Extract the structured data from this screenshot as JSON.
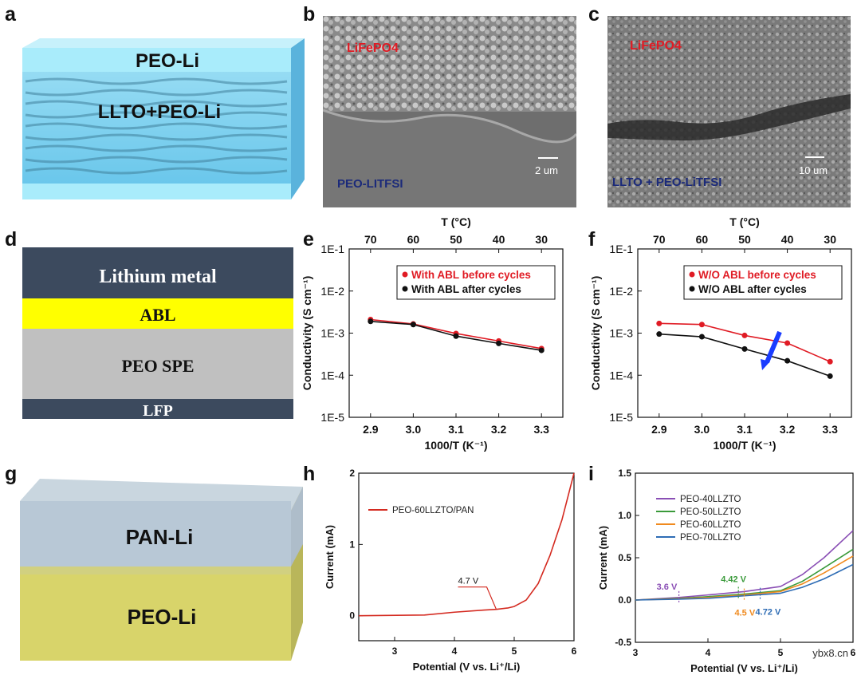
{
  "panels": {
    "a": {
      "letter": "a",
      "top_label": "PEO-Li",
      "middle_label": "LLTO+PEO-Li"
    },
    "b": {
      "letter": "b",
      "cathode_label": "LiFePO4",
      "electrolyte_label": "PEO-LITFSI",
      "scale": "2 um"
    },
    "c": {
      "letter": "c",
      "cathode_label": "LiFePO4",
      "electrolyte_label": "LLTO + PEO-LiTFSI",
      "scale": "10 um"
    },
    "d": {
      "letter": "d",
      "layers": [
        "Lithium metal",
        "ABL",
        "PEO SPE",
        "LFP"
      ]
    },
    "e": {
      "letter": "e"
    },
    "f": {
      "letter": "f"
    },
    "g": {
      "letter": "g",
      "top_label": "PAN-Li",
      "bottom_label": "PEO-Li"
    },
    "h": {
      "letter": "h"
    },
    "i": {
      "letter": "i"
    }
  },
  "colors": {
    "slate": "#3c4a5e",
    "abl_yellow": "#ffff00",
    "spe_gray": "#c0c0c0",
    "red": "#e01b24",
    "black": "#111111",
    "arrow_blue": "#1a3cff"
  },
  "chart_data": [
    {
      "id": "e",
      "type": "line",
      "xlabel": "1000/T (K⁻¹)",
      "ylabel": "Conductivity (S cm⁻¹)",
      "top_axis_label": "T (°C)",
      "top_ticks": [
        "70",
        "60",
        "50",
        "40",
        "30"
      ],
      "x_ticks": [
        "2.9",
        "3.0",
        "3.1",
        "3.2",
        "3.3"
      ],
      "y_ticks": [
        "1E-5",
        "1E-4",
        "1E-3",
        "1E-2",
        "1E-1"
      ],
      "xlim": [
        2.85,
        3.35
      ],
      "ylim_log10": [
        -5,
        -1
      ],
      "x": [
        2.9,
        3.0,
        3.1,
        3.2,
        3.3
      ],
      "series": [
        {
          "name": "With ABL before cycles",
          "color": "#e01b24",
          "values": [
            0.0021,
            0.00165,
            0.00098,
            0.00065,
            0.00043
          ]
        },
        {
          "name": "With ABL after cycles",
          "color": "#111111",
          "values": [
            0.0019,
            0.0016,
            0.00085,
            0.00057,
            0.00039
          ]
        }
      ]
    },
    {
      "id": "f",
      "type": "line",
      "xlabel": "1000/T (K⁻¹)",
      "ylabel": "Conductivity (S cm⁻¹)",
      "top_axis_label": "T (°C)",
      "top_ticks": [
        "70",
        "60",
        "50",
        "40",
        "30"
      ],
      "x_ticks": [
        "2.9",
        "3.0",
        "3.1",
        "3.2",
        "3.3"
      ],
      "y_ticks": [
        "1E-5",
        "1E-4",
        "1E-3",
        "1E-2",
        "1E-1"
      ],
      "xlim": [
        2.85,
        3.35
      ],
      "ylim_log10": [
        -5,
        -1
      ],
      "x": [
        2.9,
        3.0,
        3.1,
        3.2,
        3.3
      ],
      "series": [
        {
          "name": "W/O ABL before cycles",
          "color": "#e01b24",
          "values": [
            0.0017,
            0.0016,
            0.00088,
            0.00058,
            0.00021
          ]
        },
        {
          "name": "W/O ABL after cycles",
          "color": "#111111",
          "values": [
            0.00095,
            0.00082,
            0.00042,
            0.00022,
            9.5e-05
          ]
        }
      ]
    },
    {
      "id": "h",
      "type": "line",
      "xlabel": "Potential (V vs. Li⁺/Li)",
      "ylabel": "Current (mA)",
      "x_ticks": [
        "3",
        "4",
        "5",
        "6"
      ],
      "y_ticks": [
        "0",
        "1",
        "2"
      ],
      "xlim": [
        2.4,
        6.0
      ],
      "ylim": [
        -0.35,
        2.0
      ],
      "annotation": "4.7 V",
      "series": [
        {
          "name": "PEO-60LLZTO/PAN",
          "color": "#d42a20",
          "x": [
            2.4,
            3.5,
            4.0,
            4.5,
            4.7,
            4.9,
            5.0,
            5.2,
            5.4,
            5.6,
            5.8,
            6.0
          ],
          "values": [
            0.0,
            0.01,
            0.05,
            0.08,
            0.09,
            0.11,
            0.13,
            0.22,
            0.45,
            0.85,
            1.35,
            2.0
          ]
        }
      ]
    },
    {
      "id": "i",
      "type": "line",
      "xlabel": "Potential (V vs. Li⁺/Li)",
      "ylabel": "Current (mA)",
      "x_ticks": [
        "3",
        "4",
        "5",
        "6"
      ],
      "y_ticks": [
        "-0.5",
        "0.0",
        "0.5",
        "1.0",
        "1.5"
      ],
      "xlim": [
        3.0,
        6.0
      ],
      "ylim": [
        -0.5,
        1.5
      ],
      "annotations": [
        {
          "text": "3.6 V",
          "color": "#8a4fb5"
        },
        {
          "text": "4.42 V",
          "color": "#3a9a3a"
        },
        {
          "text": "4.5 V",
          "color": "#f08a1e"
        },
        {
          "text": "4.72 V",
          "color": "#2f6db5"
        }
      ],
      "series": [
        {
          "name": "PEO-40LLZTO",
          "color": "#8a4fb5",
          "x": [
            3.0,
            3.6,
            4.0,
            4.5,
            5.0,
            5.3,
            5.6,
            6.0
          ],
          "values": [
            0.0,
            0.03,
            0.06,
            0.1,
            0.16,
            0.3,
            0.5,
            0.82
          ]
        },
        {
          "name": "PEO-50LLZTO",
          "color": "#3a9a3a",
          "x": [
            3.0,
            3.6,
            4.0,
            4.5,
            5.0,
            5.3,
            5.6,
            6.0
          ],
          "values": [
            0.0,
            0.02,
            0.04,
            0.07,
            0.11,
            0.22,
            0.38,
            0.6
          ]
        },
        {
          "name": "PEO-60LLZTO",
          "color": "#f08a1e",
          "x": [
            3.0,
            3.6,
            4.0,
            4.5,
            5.0,
            5.3,
            5.6,
            6.0
          ],
          "values": [
            0.0,
            0.015,
            0.03,
            0.06,
            0.1,
            0.19,
            0.32,
            0.52
          ]
        },
        {
          "name": "PEO-70LLZTO",
          "color": "#2f6db5",
          "x": [
            3.0,
            3.6,
            4.0,
            4.5,
            5.0,
            5.3,
            5.6,
            6.0
          ],
          "values": [
            0.0,
            0.01,
            0.02,
            0.05,
            0.08,
            0.15,
            0.25,
            0.42
          ]
        }
      ]
    }
  ],
  "watermark": "ybx8.cn"
}
